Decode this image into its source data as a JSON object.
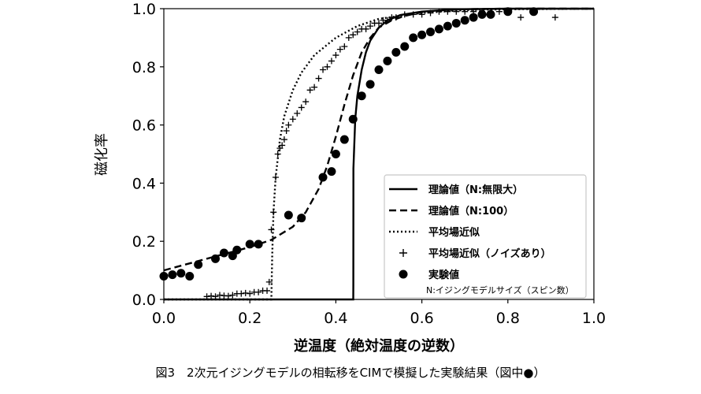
{
  "caption": "図3　2次元イジングモデルの相転移をCIMで模擬した実験結果（図中●）",
  "chart_data": {
    "type": "line",
    "xlabel": "逆温度（絶対温度の逆数）",
    "ylabel": "磁化率",
    "xlim": [
      0.0,
      1.0
    ],
    "ylim": [
      0.0,
      1.0
    ],
    "xticks": [
      "0.0",
      "0.2",
      "0.4",
      "0.6",
      "0.8",
      "1.0"
    ],
    "yticks": [
      "0.0",
      "0.2",
      "0.4",
      "0.6",
      "0.8",
      "1.0"
    ],
    "grid": false,
    "legend_position": "lower-right",
    "legend_note": "N:イジングモデルサイズ（スピン数）",
    "series": [
      {
        "name": "理論値（N:無限大）",
        "style": "solid-line",
        "x": [
          0.0,
          0.4405,
          0.4407,
          0.4408,
          0.445,
          0.45,
          0.46,
          0.47,
          0.48,
          0.5,
          0.52,
          0.55,
          0.6,
          0.65,
          0.7,
          0.8,
          0.9,
          1.0
        ],
        "y": [
          0.0,
          0.0,
          0.05,
          0.45,
          0.62,
          0.7,
          0.79,
          0.85,
          0.89,
          0.935,
          0.96,
          0.978,
          0.99,
          0.995,
          0.998,
          1.0,
          1.0,
          1.0
        ]
      },
      {
        "name": "理論値（N:100）",
        "style": "dashed-line",
        "x": [
          0.0,
          0.05,
          0.1,
          0.15,
          0.2,
          0.25,
          0.3,
          0.33,
          0.36,
          0.38,
          0.4,
          0.42,
          0.44,
          0.46,
          0.48,
          0.5,
          0.53,
          0.56,
          0.6,
          0.65,
          0.7,
          0.8,
          1.0
        ],
        "y": [
          0.1,
          0.12,
          0.14,
          0.16,
          0.18,
          0.205,
          0.25,
          0.3,
          0.38,
          0.46,
          0.56,
          0.67,
          0.77,
          0.85,
          0.9,
          0.935,
          0.96,
          0.975,
          0.988,
          0.995,
          0.998,
          1.0,
          1.0
        ]
      },
      {
        "name": "平均場近似",
        "style": "dotted-line",
        "x": [
          0.0,
          0.24,
          0.25,
          0.252,
          0.255,
          0.26,
          0.27,
          0.28,
          0.3,
          0.32,
          0.35,
          0.4,
          0.45,
          0.5,
          0.6,
          0.7,
          0.8,
          1.0
        ],
        "y": [
          0.0,
          0.0,
          0.0,
          0.15,
          0.3,
          0.42,
          0.55,
          0.63,
          0.72,
          0.78,
          0.84,
          0.9,
          0.94,
          0.965,
          0.985,
          0.995,
          0.998,
          1.0
        ]
      },
      {
        "name": "平均場近似（ノイズあり）",
        "style": "plus-marker",
        "x": [
          0.1,
          0.11,
          0.12,
          0.13,
          0.14,
          0.15,
          0.16,
          0.17,
          0.18,
          0.19,
          0.2,
          0.21,
          0.22,
          0.23,
          0.24,
          0.245,
          0.25,
          0.255,
          0.26,
          0.265,
          0.27,
          0.275,
          0.28,
          0.285,
          0.29,
          0.3,
          0.31,
          0.32,
          0.33,
          0.34,
          0.35,
          0.36,
          0.37,
          0.38,
          0.39,
          0.4,
          0.41,
          0.42,
          0.43,
          0.44,
          0.45,
          0.46,
          0.47,
          0.48,
          0.49,
          0.5,
          0.51,
          0.52,
          0.53,
          0.54,
          0.56,
          0.58,
          0.6,
          0.62,
          0.64,
          0.66,
          0.68,
          0.7,
          0.72,
          0.74,
          0.76,
          0.78,
          0.8,
          0.83,
          0.91
        ],
        "y": [
          0.01,
          0.012,
          0.01,
          0.015,
          0.013,
          0.012,
          0.015,
          0.02,
          0.02,
          0.022,
          0.02,
          0.025,
          0.025,
          0.03,
          0.03,
          0.06,
          0.24,
          0.3,
          0.42,
          0.5,
          0.52,
          0.53,
          0.55,
          0.58,
          0.6,
          0.62,
          0.64,
          0.66,
          0.68,
          0.72,
          0.73,
          0.76,
          0.79,
          0.8,
          0.82,
          0.84,
          0.86,
          0.87,
          0.9,
          0.91,
          0.92,
          0.93,
          0.93,
          0.94,
          0.95,
          0.95,
          0.96,
          0.96,
          0.97,
          0.97,
          0.98,
          0.98,
          0.98,
          0.985,
          0.99,
          0.99,
          0.99,
          0.99,
          0.99,
          0.99,
          0.99,
          0.99,
          0.99,
          0.97,
          0.97
        ]
      },
      {
        "name": "実験値",
        "style": "circle-marker",
        "x": [
          0.0,
          0.02,
          0.04,
          0.06,
          0.08,
          0.12,
          0.14,
          0.16,
          0.17,
          0.2,
          0.22,
          0.29,
          0.32,
          0.37,
          0.39,
          0.4,
          0.42,
          0.44,
          0.46,
          0.48,
          0.5,
          0.52,
          0.54,
          0.56,
          0.58,
          0.6,
          0.62,
          0.64,
          0.66,
          0.68,
          0.7,
          0.72,
          0.74,
          0.76,
          0.8,
          0.86
        ],
        "y": [
          0.08,
          0.085,
          0.09,
          0.08,
          0.12,
          0.14,
          0.16,
          0.15,
          0.17,
          0.19,
          0.19,
          0.29,
          0.28,
          0.42,
          0.44,
          0.5,
          0.55,
          0.62,
          0.7,
          0.74,
          0.79,
          0.82,
          0.85,
          0.87,
          0.9,
          0.91,
          0.92,
          0.93,
          0.94,
          0.95,
          0.96,
          0.97,
          0.98,
          0.98,
          0.99,
          0.99
        ]
      }
    ]
  }
}
